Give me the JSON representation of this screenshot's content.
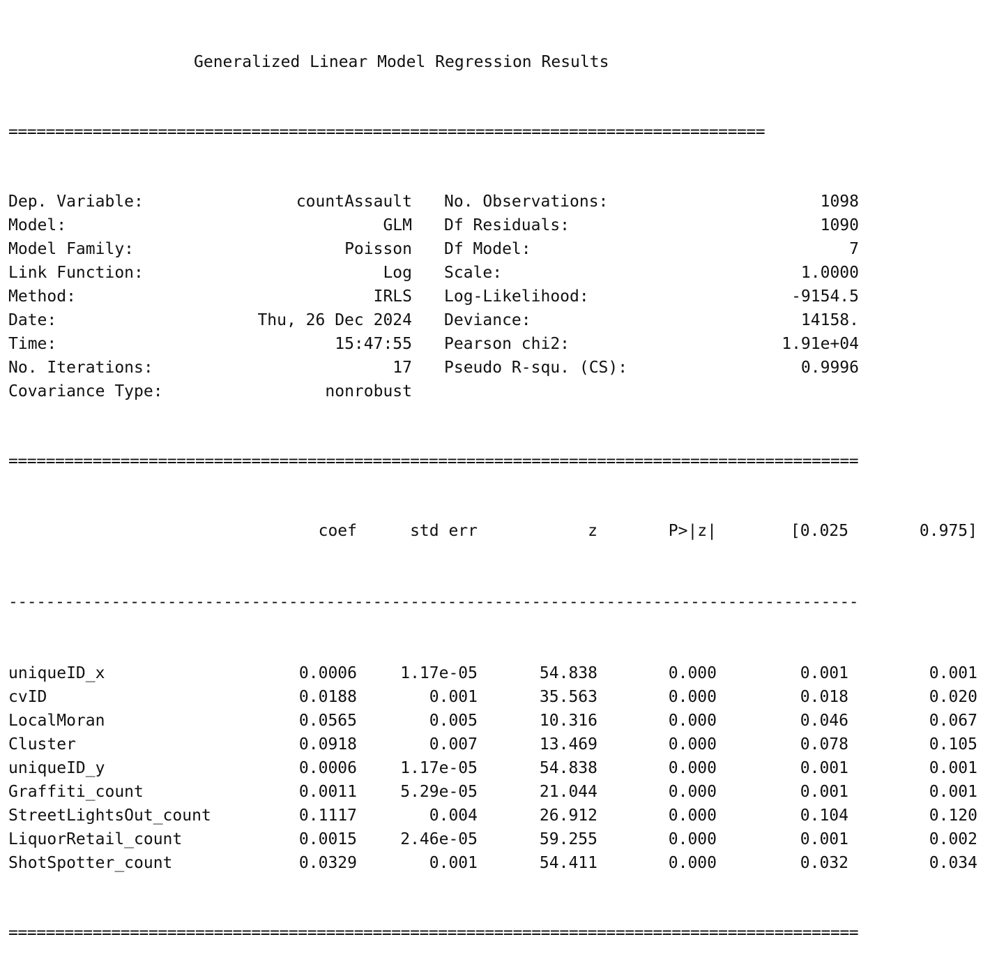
{
  "title": "Generalized Linear Model Regression Results",
  "summary": [
    {
      "label": "Dep. Variable:",
      "value": "countAssault",
      "label2": "No. Observations:",
      "value2": "1098"
    },
    {
      "label": "Model:",
      "value": "GLM",
      "label2": "Df Residuals:",
      "value2": "1090"
    },
    {
      "label": "Model Family:",
      "value": "Poisson",
      "label2": "Df Model:",
      "value2": "7"
    },
    {
      "label": "Link Function:",
      "value": "Log",
      "label2": "Scale:",
      "value2": "1.0000"
    },
    {
      "label": "Method:",
      "value": "IRLS",
      "label2": "Log-Likelihood:",
      "value2": "-9154.5"
    },
    {
      "label": "Date:",
      "value": "Thu, 26 Dec 2024",
      "label2": "Deviance:",
      "value2": "14158."
    },
    {
      "label": "Time:",
      "value": "15:47:55",
      "label2": "Pearson chi2:",
      "value2": "1.91e+04"
    },
    {
      "label": "No. Iterations:",
      "value": "17",
      "label2": "Pseudo R-squ. (CS):",
      "value2": "0.9996"
    },
    {
      "label": "Covariance Type:",
      "value": "nonrobust",
      "label2": "",
      "value2": ""
    }
  ],
  "coef_headers": [
    "coef",
    "std err",
    "z",
    "P>|z|",
    "[0.025",
    "0.975]"
  ],
  "coefficients": [
    {
      "name": "uniqueID_x",
      "coef": "0.0006",
      "std_err": "1.17e-05",
      "z": "54.838",
      "p": "0.000",
      "lo": "0.001",
      "hi": "0.001"
    },
    {
      "name": "cvID",
      "coef": "0.0188",
      "std_err": "0.001",
      "z": "35.563",
      "p": "0.000",
      "lo": "0.018",
      "hi": "0.020"
    },
    {
      "name": "LocalMoran",
      "coef": "0.0565",
      "std_err": "0.005",
      "z": "10.316",
      "p": "0.000",
      "lo": "0.046",
      "hi": "0.067"
    },
    {
      "name": "Cluster",
      "coef": "0.0918",
      "std_err": "0.007",
      "z": "13.469",
      "p": "0.000",
      "lo": "0.078",
      "hi": "0.105"
    },
    {
      "name": "uniqueID_y",
      "coef": "0.0006",
      "std_err": "1.17e-05",
      "z": "54.838",
      "p": "0.000",
      "lo": "0.001",
      "hi": "0.001"
    },
    {
      "name": "Graffiti_count",
      "coef": "0.0011",
      "std_err": "5.29e-05",
      "z": "21.044",
      "p": "0.000",
      "lo": "0.001",
      "hi": "0.001"
    },
    {
      "name": "StreetLightsOut_count",
      "coef": "0.1117",
      "std_err": "0.004",
      "z": "26.912",
      "p": "0.000",
      "lo": "0.104",
      "hi": "0.120"
    },
    {
      "name": "LiquorRetail_count",
      "coef": "0.0015",
      "std_err": "2.46e-05",
      "z": "59.255",
      "p": "0.000",
      "lo": "0.001",
      "hi": "0.002"
    },
    {
      "name": "ShotSpotter_count",
      "coef": "0.0329",
      "std_err": "0.001",
      "z": "54.411",
      "p": "0.000",
      "lo": "0.032",
      "hi": "0.034"
    }
  ]
}
